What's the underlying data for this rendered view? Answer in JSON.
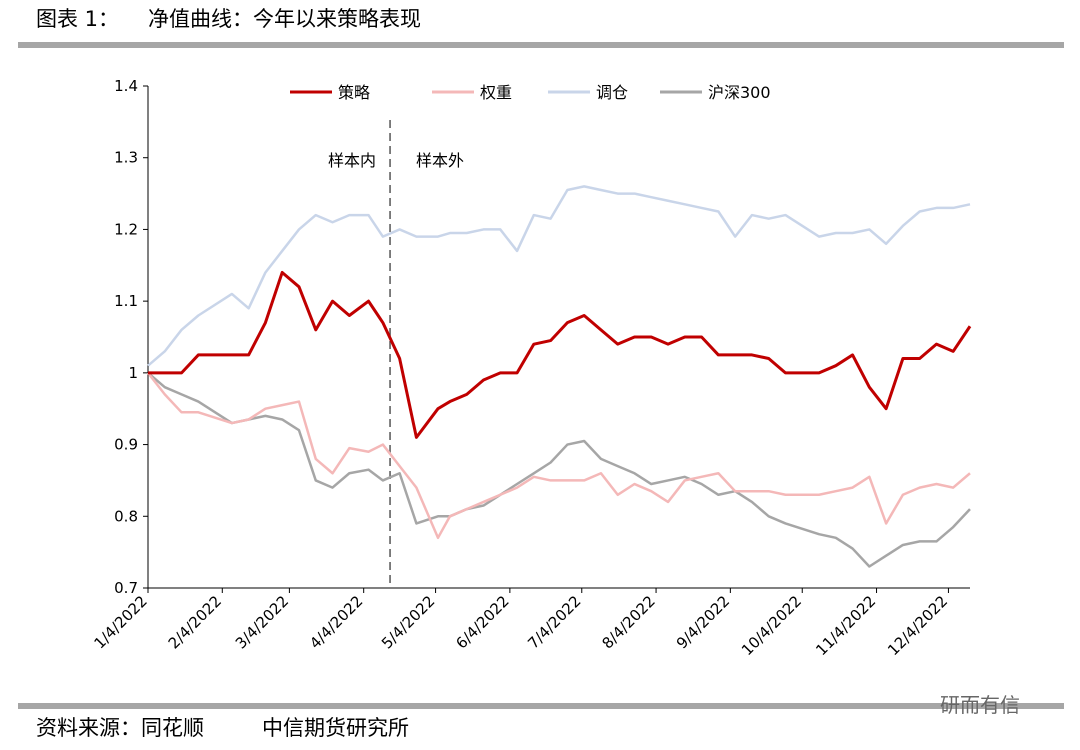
{
  "header": {
    "label": "图表 1：",
    "title": "净值曲线：今年以来策略表现"
  },
  "chart_data": {
    "type": "line",
    "x": [
      "2022-01-04",
      "2022-01-11",
      "2022-01-18",
      "2022-01-25",
      "2022-02-08",
      "2022-02-15",
      "2022-02-22",
      "2022-03-01",
      "2022-03-08",
      "2022-03-15",
      "2022-03-22",
      "2022-03-29",
      "2022-04-06",
      "2022-04-12",
      "2022-04-19",
      "2022-04-26",
      "2022-05-05",
      "2022-05-10",
      "2022-05-17",
      "2022-05-24",
      "2022-05-31",
      "2022-06-07",
      "2022-06-14",
      "2022-06-21",
      "2022-06-28",
      "2022-07-05",
      "2022-07-12",
      "2022-07-19",
      "2022-07-26",
      "2022-08-02",
      "2022-08-09",
      "2022-08-16",
      "2022-08-23",
      "2022-08-30",
      "2022-09-06",
      "2022-09-13",
      "2022-09-20",
      "2022-09-27",
      "2022-10-11",
      "2022-10-18",
      "2022-10-25",
      "2022-11-01",
      "2022-11-08",
      "2022-11-15",
      "2022-11-22",
      "2022-11-29",
      "2022-12-06",
      "2022-12-13"
    ],
    "series": [
      {
        "name": "策略",
        "color": "#c00000",
        "values": [
          1.0,
          1.0,
          1.0,
          1.025,
          1.025,
          1.025,
          1.07,
          1.14,
          1.12,
          1.06,
          1.1,
          1.08,
          1.1,
          1.07,
          1.02,
          0.91,
          0.95,
          0.96,
          0.97,
          0.99,
          1.0,
          1.0,
          1.04,
          1.045,
          1.07,
          1.08,
          1.06,
          1.04,
          1.05,
          1.05,
          1.04,
          1.05,
          1.05,
          1.025,
          1.025,
          1.025,
          1.02,
          1.0,
          1.0,
          1.01,
          1.025,
          0.98,
          0.95,
          1.02,
          1.02,
          1.04,
          1.03,
          1.065
        ]
      },
      {
        "name": "权重",
        "color": "#f4b8b8",
        "values": [
          1.0,
          0.97,
          0.945,
          0.945,
          0.93,
          0.935,
          0.95,
          0.955,
          0.96,
          0.88,
          0.86,
          0.895,
          0.89,
          0.9,
          0.87,
          0.84,
          0.77,
          0.8,
          0.81,
          0.82,
          0.83,
          0.84,
          0.855,
          0.85,
          0.85,
          0.85,
          0.86,
          0.83,
          0.845,
          0.835,
          0.82,
          0.85,
          0.855,
          0.86,
          0.835,
          0.835,
          0.835,
          0.83,
          0.83,
          0.835,
          0.84,
          0.855,
          0.79,
          0.83,
          0.84,
          0.845,
          0.84,
          0.86
        ]
      },
      {
        "name": "调仓",
        "color": "#c9d5e9",
        "values": [
          1.01,
          1.03,
          1.06,
          1.08,
          1.11,
          1.09,
          1.14,
          1.17,
          1.2,
          1.22,
          1.21,
          1.22,
          1.22,
          1.19,
          1.2,
          1.19,
          1.19,
          1.195,
          1.195,
          1.2,
          1.2,
          1.17,
          1.22,
          1.215,
          1.255,
          1.26,
          1.255,
          1.25,
          1.25,
          1.245,
          1.24,
          1.235,
          1.23,
          1.225,
          1.19,
          1.22,
          1.215,
          1.22,
          1.19,
          1.195,
          1.195,
          1.2,
          1.18,
          1.205,
          1.225,
          1.23,
          1.23,
          1.235
        ]
      },
      {
        "name": "沪深300",
        "color": "#a6a6a6",
        "values": [
          1.0,
          0.98,
          0.97,
          0.96,
          0.93,
          0.935,
          0.94,
          0.935,
          0.92,
          0.85,
          0.84,
          0.86,
          0.865,
          0.85,
          0.86,
          0.79,
          0.8,
          0.8,
          0.81,
          0.815,
          0.83,
          0.845,
          0.86,
          0.875,
          0.9,
          0.905,
          0.88,
          0.87,
          0.86,
          0.845,
          0.85,
          0.855,
          0.845,
          0.83,
          0.835,
          0.82,
          0.8,
          0.79,
          0.775,
          0.77,
          0.755,
          0.73,
          0.745,
          0.76,
          0.765,
          0.765,
          0.785,
          0.81
        ]
      }
    ],
    "xlim": [
      "2022-01-04",
      "2022-12-13"
    ],
    "xticks": [
      {
        "value": "2022-01-04",
        "label": "1/4/2022"
      },
      {
        "value": "2022-02-04",
        "label": "2/4/2022"
      },
      {
        "value": "2022-03-04",
        "label": "3/4/2022"
      },
      {
        "value": "2022-04-04",
        "label": "4/4/2022"
      },
      {
        "value": "2022-05-04",
        "label": "5/4/2022"
      },
      {
        "value": "2022-06-04",
        "label": "6/4/2022"
      },
      {
        "value": "2022-07-04",
        "label": "7/4/2022"
      },
      {
        "value": "2022-08-04",
        "label": "8/4/2022"
      },
      {
        "value": "2022-09-04",
        "label": "9/4/2022"
      },
      {
        "value": "2022-10-04",
        "label": "10/4/2022"
      },
      {
        "value": "2022-11-04",
        "label": "11/4/2022"
      },
      {
        "value": "2022-12-04",
        "label": "12/4/2022"
      }
    ],
    "ylim": [
      0.7,
      1.4
    ],
    "yticks": [
      0.7,
      0.8,
      0.9,
      1,
      1.1,
      1.2,
      1.3,
      1.4
    ],
    "grid": false,
    "legend": "top",
    "annotations": [
      {
        "x": "2022-04-15",
        "left": "样本内",
        "right": "样本外"
      }
    ]
  },
  "footer": {
    "source": "资料来源：同花顺",
    "org": "中信期货研究所"
  },
  "watermark": "研而有信"
}
